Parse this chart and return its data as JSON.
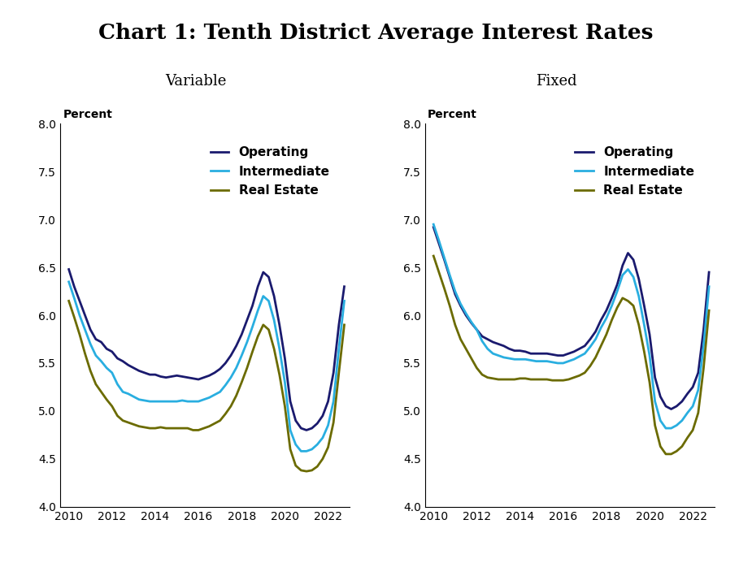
{
  "title": "Chart 1: Tenth District Average Interest Rates",
  "subtitle_left": "Variable",
  "subtitle_right": "Fixed",
  "ylabel": "Percent",
  "line_colors": {
    "operating": "#1a1a6e",
    "intermediate": "#29aee0",
    "real_estate": "#6b6b00"
  },
  "line_labels": [
    "Operating",
    "Intermediate",
    "Real Estate"
  ],
  "ylim": [
    4.0,
    8.0
  ],
  "yticks": [
    4.0,
    4.5,
    5.0,
    5.5,
    6.0,
    6.5,
    7.0,
    7.5,
    8.0
  ],
  "xticks": [
    2010,
    2012,
    2014,
    2016,
    2018,
    2020,
    2022
  ],
  "variable": {
    "quarters": [
      2010.0,
      2010.25,
      2010.5,
      2010.75,
      2011.0,
      2011.25,
      2011.5,
      2011.75,
      2012.0,
      2012.25,
      2012.5,
      2012.75,
      2013.0,
      2013.25,
      2013.5,
      2013.75,
      2014.0,
      2014.25,
      2014.5,
      2014.75,
      2015.0,
      2015.25,
      2015.5,
      2015.75,
      2016.0,
      2016.25,
      2016.5,
      2016.75,
      2017.0,
      2017.25,
      2017.5,
      2017.75,
      2018.0,
      2018.25,
      2018.5,
      2018.75,
      2019.0,
      2019.25,
      2019.5,
      2019.75,
      2020.0,
      2020.25,
      2020.5,
      2020.75,
      2021.0,
      2021.25,
      2021.5,
      2021.75,
      2022.0,
      2022.25,
      2022.5,
      2022.75
    ],
    "operating": [
      6.48,
      6.3,
      6.15,
      6.0,
      5.85,
      5.75,
      5.72,
      5.65,
      5.62,
      5.55,
      5.52,
      5.48,
      5.45,
      5.42,
      5.4,
      5.38,
      5.38,
      5.36,
      5.35,
      5.36,
      5.37,
      5.36,
      5.35,
      5.34,
      5.33,
      5.35,
      5.37,
      5.4,
      5.44,
      5.5,
      5.58,
      5.68,
      5.8,
      5.95,
      6.1,
      6.3,
      6.45,
      6.4,
      6.2,
      5.9,
      5.55,
      5.1,
      4.9,
      4.82,
      4.8,
      4.82,
      4.87,
      4.95,
      5.1,
      5.4,
      5.9,
      6.3
    ],
    "intermediate": [
      6.35,
      6.18,
      6.0,
      5.85,
      5.7,
      5.58,
      5.52,
      5.45,
      5.4,
      5.28,
      5.2,
      5.18,
      5.15,
      5.12,
      5.11,
      5.1,
      5.1,
      5.1,
      5.1,
      5.1,
      5.1,
      5.11,
      5.1,
      5.1,
      5.1,
      5.12,
      5.14,
      5.17,
      5.2,
      5.27,
      5.35,
      5.45,
      5.58,
      5.72,
      5.88,
      6.05,
      6.2,
      6.15,
      5.95,
      5.65,
      5.3,
      4.8,
      4.65,
      4.58,
      4.58,
      4.6,
      4.65,
      4.72,
      4.85,
      5.1,
      5.65,
      6.15
    ],
    "real_estate": [
      6.15,
      5.98,
      5.8,
      5.6,
      5.42,
      5.28,
      5.2,
      5.12,
      5.05,
      4.95,
      4.9,
      4.88,
      4.86,
      4.84,
      4.83,
      4.82,
      4.82,
      4.83,
      4.82,
      4.82,
      4.82,
      4.82,
      4.82,
      4.8,
      4.8,
      4.82,
      4.84,
      4.87,
      4.9,
      4.97,
      5.05,
      5.16,
      5.3,
      5.45,
      5.62,
      5.78,
      5.9,
      5.85,
      5.65,
      5.38,
      5.05,
      4.6,
      4.43,
      4.38,
      4.37,
      4.38,
      4.42,
      4.5,
      4.62,
      4.88,
      5.4,
      5.9
    ]
  },
  "fixed": {
    "quarters": [
      2010.0,
      2010.25,
      2010.5,
      2010.75,
      2011.0,
      2011.25,
      2011.5,
      2011.75,
      2012.0,
      2012.25,
      2012.5,
      2012.75,
      2013.0,
      2013.25,
      2013.5,
      2013.75,
      2014.0,
      2014.25,
      2014.5,
      2014.75,
      2015.0,
      2015.25,
      2015.5,
      2015.75,
      2016.0,
      2016.25,
      2016.5,
      2016.75,
      2017.0,
      2017.25,
      2017.5,
      2017.75,
      2018.0,
      2018.25,
      2018.5,
      2018.75,
      2019.0,
      2019.25,
      2019.5,
      2019.75,
      2020.0,
      2020.25,
      2020.5,
      2020.75,
      2021.0,
      2021.25,
      2021.5,
      2021.75,
      2022.0,
      2022.25,
      2022.5,
      2022.75
    ],
    "operating": [
      6.92,
      6.75,
      6.58,
      6.4,
      6.22,
      6.1,
      6.0,
      5.92,
      5.85,
      5.78,
      5.75,
      5.72,
      5.7,
      5.68,
      5.65,
      5.63,
      5.63,
      5.62,
      5.6,
      5.6,
      5.6,
      5.6,
      5.59,
      5.58,
      5.58,
      5.6,
      5.62,
      5.65,
      5.68,
      5.75,
      5.83,
      5.95,
      6.05,
      6.18,
      6.32,
      6.52,
      6.65,
      6.58,
      6.38,
      6.1,
      5.8,
      5.35,
      5.15,
      5.05,
      5.02,
      5.05,
      5.1,
      5.18,
      5.25,
      5.4,
      5.85,
      6.45
    ],
    "intermediate": [
      6.95,
      6.78,
      6.6,
      6.42,
      6.25,
      6.12,
      6.02,
      5.93,
      5.85,
      5.73,
      5.65,
      5.6,
      5.58,
      5.56,
      5.55,
      5.54,
      5.54,
      5.54,
      5.53,
      5.52,
      5.52,
      5.52,
      5.51,
      5.5,
      5.5,
      5.52,
      5.54,
      5.57,
      5.6,
      5.67,
      5.75,
      5.87,
      5.97,
      6.1,
      6.25,
      6.42,
      6.48,
      6.4,
      6.2,
      5.9,
      5.58,
      5.1,
      4.9,
      4.82,
      4.82,
      4.85,
      4.9,
      4.98,
      5.05,
      5.22,
      5.68,
      6.3
    ],
    "real_estate": [
      6.62,
      6.45,
      6.28,
      6.1,
      5.9,
      5.75,
      5.65,
      5.55,
      5.45,
      5.38,
      5.35,
      5.34,
      5.33,
      5.33,
      5.33,
      5.33,
      5.34,
      5.34,
      5.33,
      5.33,
      5.33,
      5.33,
      5.32,
      5.32,
      5.32,
      5.33,
      5.35,
      5.37,
      5.4,
      5.47,
      5.56,
      5.68,
      5.8,
      5.95,
      6.08,
      6.18,
      6.15,
      6.1,
      5.9,
      5.62,
      5.3,
      4.85,
      4.63,
      4.55,
      4.55,
      4.58,
      4.63,
      4.72,
      4.8,
      4.98,
      5.45,
      6.05
    ]
  },
  "line_width": 2.0,
  "background_color": "#ffffff",
  "legend_fontsize": 11,
  "axis_label_fontsize": 10,
  "tick_fontsize": 10,
  "subtitle_fontsize": 13,
  "title_fontsize": 19
}
